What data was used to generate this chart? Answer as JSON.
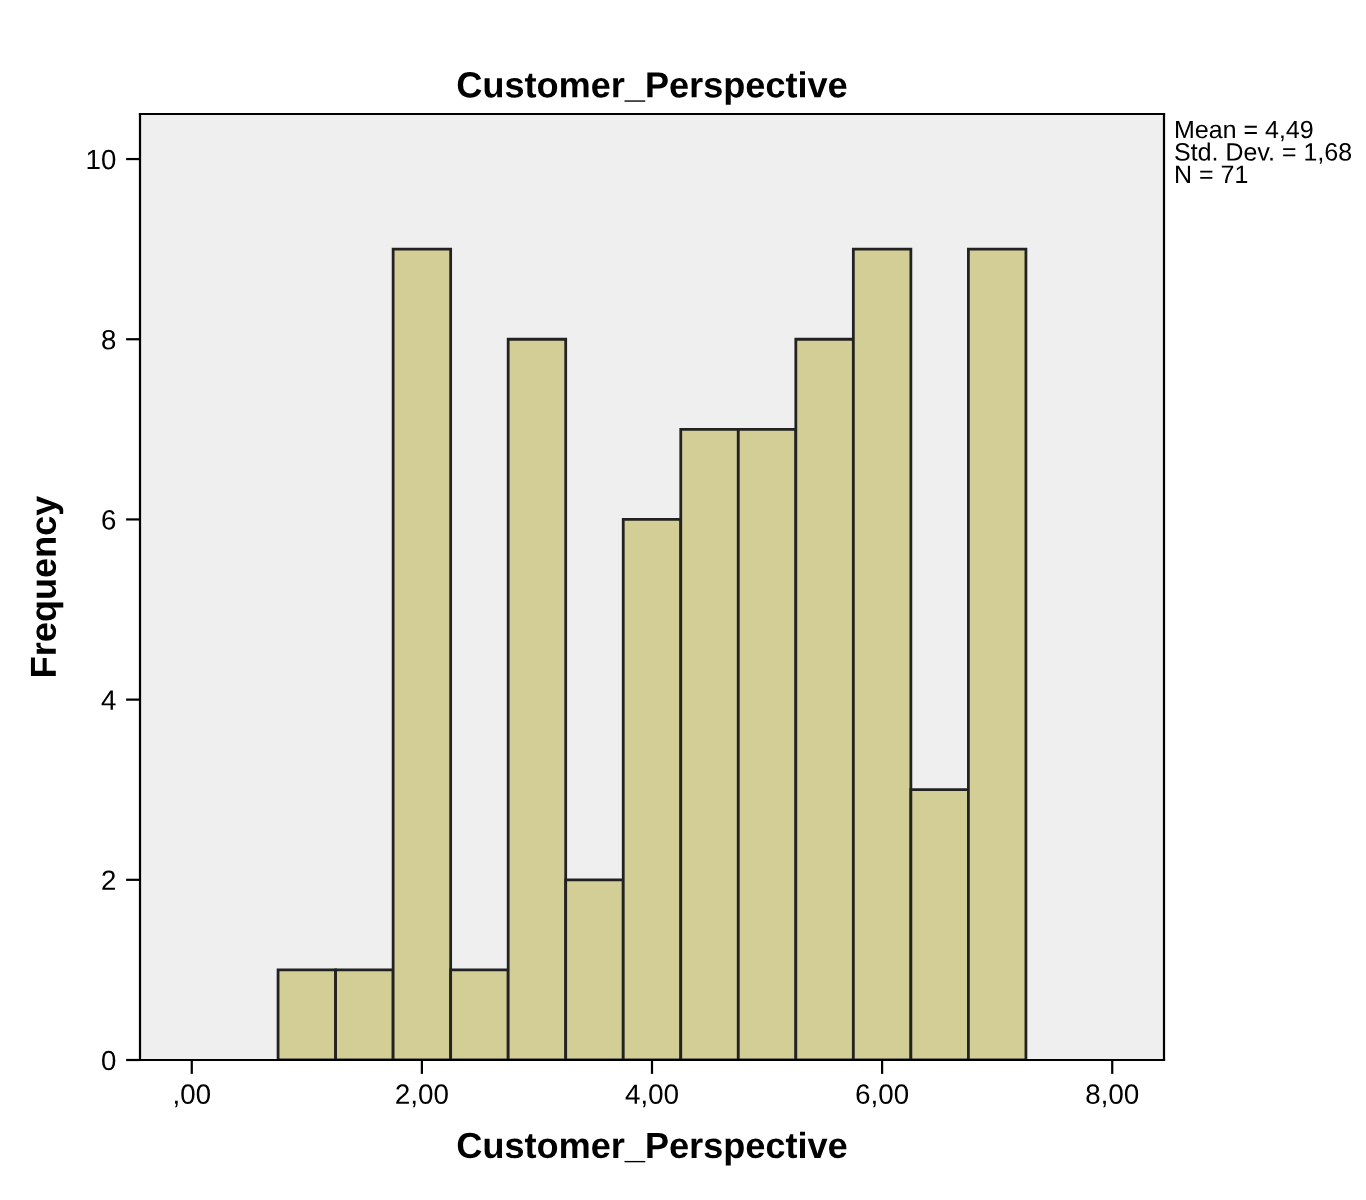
{
  "chart_data": {
    "type": "histogram",
    "title": "Customer_Perspective",
    "xlabel": "Customer_Perspective",
    "ylabel": "Frequency",
    "bins": [
      0.75,
      1.25,
      1.75,
      2.25,
      2.75,
      3.25,
      3.75,
      4.25,
      4.75,
      5.25,
      5.75,
      6.25,
      6.75,
      7.25
    ],
    "values": [
      1,
      1,
      9,
      1,
      8,
      2,
      6,
      7,
      7,
      8,
      9,
      3,
      9
    ],
    "color": "#d3cd96",
    "xlim": [
      -0.45,
      8.45
    ],
    "xticks": [
      {
        "value": 0,
        "label": ",00"
      },
      {
        "value": 2,
        "label": "2,00"
      },
      {
        "value": 4,
        "label": "4,00"
      },
      {
        "value": 6,
        "label": "6,00"
      },
      {
        "value": 8,
        "label": "8,00"
      }
    ],
    "ylim": [
      0,
      10.5
    ],
    "yticks": [
      0,
      2,
      4,
      6,
      8,
      10
    ],
    "grid": false,
    "annotations": [
      "Mean = 4,49\nStd. Dev. = 1,68\nN = 71"
    ]
  }
}
